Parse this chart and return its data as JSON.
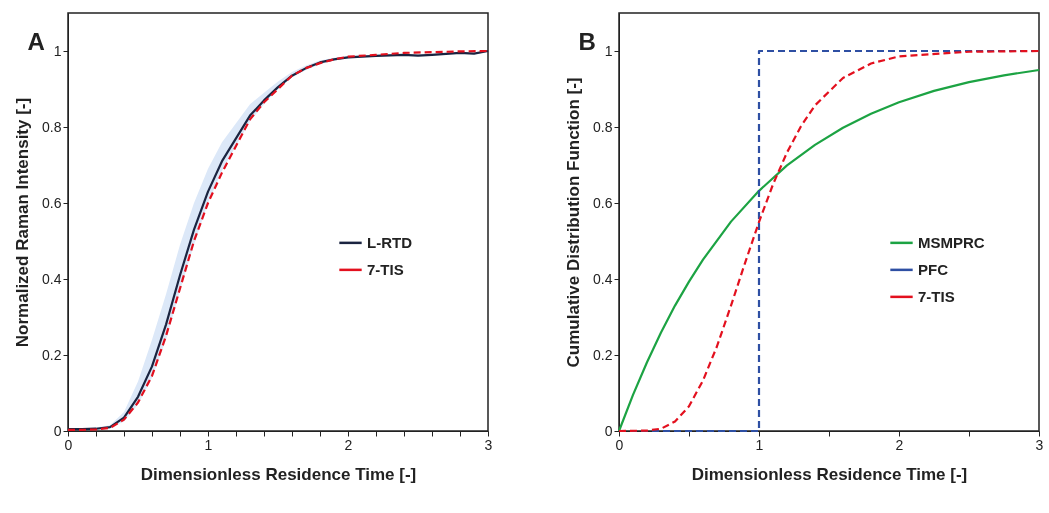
{
  "chart_data": [
    {
      "type": "line",
      "title": "A",
      "xlabel": "Dimensionless Residence Time [-]",
      "ylabel": "Normalized Raman Intensity [-]",
      "xlim": [
        0,
        3
      ],
      "ylim": [
        0,
        1.1
      ],
      "xticks": [
        0,
        {
          "value": 0.2,
          "label": null
        },
        {
          "value": 0.4,
          "label": null
        },
        {
          "value": 0.6,
          "label": null
        },
        {
          "value": 0.8,
          "label": null
        },
        1,
        {
          "value": 1.2,
          "label": null
        },
        {
          "value": 1.4,
          "label": null
        },
        {
          "value": 1.6,
          "label": null
        },
        {
          "value": 1.8,
          "label": null
        },
        2,
        {
          "value": 2.2,
          "label": null
        },
        {
          "value": 2.4,
          "label": null
        },
        {
          "value": 2.6,
          "label": null
        },
        {
          "value": 2.8,
          "label": null
        },
        3
      ],
      "yticks": [
        0,
        0.2,
        0.4,
        0.6,
        0.8,
        1
      ],
      "grid": false,
      "legend": "right",
      "series": [
        {
          "name": "L-RTD",
          "color": "#1a2440",
          "line_style": "solid",
          "x": [
            0,
            0.1,
            0.2,
            0.3,
            0.4,
            0.5,
            0.6,
            0.7,
            0.8,
            0.9,
            1.0,
            1.1,
            1.2,
            1.3,
            1.4,
            1.5,
            1.6,
            1.7,
            1.8,
            1.9,
            2.0,
            2.2,
            2.4,
            2.5,
            2.6,
            2.8,
            2.9,
            3.0
          ],
          "values": [
            0.005,
            0.005,
            0.006,
            0.01,
            0.035,
            0.09,
            0.17,
            0.28,
            0.41,
            0.53,
            0.63,
            0.71,
            0.77,
            0.83,
            0.87,
            0.905,
            0.935,
            0.955,
            0.97,
            0.978,
            0.983,
            0.987,
            0.99,
            0.988,
            0.99,
            0.995,
            0.993,
            1.0
          ],
          "lower": [
            0.003,
            0.003,
            0.004,
            0.007,
            0.025,
            0.07,
            0.14,
            0.24,
            0.37,
            0.49,
            0.6,
            0.685,
            0.75,
            0.815,
            0.86,
            0.9,
            0.93,
            0.95,
            0.965,
            0.975,
            0.98,
            0.985,
            0.988,
            0.986,
            0.988,
            0.993,
            0.991,
            0.998
          ],
          "upper": [
            0.007,
            0.007,
            0.009,
            0.015,
            0.05,
            0.13,
            0.24,
            0.36,
            0.49,
            0.6,
            0.69,
            0.76,
            0.81,
            0.86,
            0.89,
            0.92,
            0.945,
            0.962,
            0.975,
            0.982,
            0.987,
            0.99,
            0.993,
            0.991,
            0.993,
            0.997,
            0.996,
            1.0
          ]
        },
        {
          "name": "7-TIS",
          "color": "#e3101e",
          "line_style": "dashed",
          "x": [
            0,
            0.1,
            0.2,
            0.3,
            0.4,
            0.5,
            0.6,
            0.7,
            0.8,
            0.9,
            1.0,
            1.1,
            1.2,
            1.3,
            1.4,
            1.5,
            1.6,
            1.7,
            1.8,
            1.9,
            2.0,
            2.2,
            2.4,
            2.6,
            2.8,
            3.0
          ],
          "values": [
            0.003,
            0.003,
            0.004,
            0.008,
            0.03,
            0.075,
            0.145,
            0.25,
            0.375,
            0.5,
            0.6,
            0.68,
            0.75,
            0.82,
            0.865,
            0.9,
            0.935,
            0.955,
            0.968,
            0.978,
            0.985,
            0.99,
            0.995,
            0.997,
            0.999,
            1.0
          ]
        }
      ]
    },
    {
      "type": "line",
      "title": "B",
      "xlabel": "Dimensionless Residence Time [-]",
      "ylabel": "Cumulative Distribution Function [-]",
      "xlim": [
        0,
        3
      ],
      "ylim": [
        0,
        1.1
      ],
      "xticks": [
        0,
        {
          "value": 0.5,
          "label": null
        },
        1,
        {
          "value": 1.5,
          "label": null
        },
        2,
        {
          "value": 2.5,
          "label": null
        },
        3
      ],
      "yticks": [
        0,
        0.2,
        0.4,
        0.6,
        0.8,
        1
      ],
      "grid": false,
      "legend": "right",
      "series": [
        {
          "name": "MSMPRC",
          "color": "#1ca343",
          "line_style": "solid",
          "x": [
            0,
            0.1,
            0.2,
            0.3,
            0.4,
            0.5,
            0.6,
            0.8,
            1.0,
            1.2,
            1.4,
            1.6,
            1.8,
            2.0,
            2.25,
            2.5,
            2.75,
            3.0
          ],
          "values": [
            0,
            0.095,
            0.181,
            0.259,
            0.33,
            0.393,
            0.451,
            0.551,
            0.632,
            0.699,
            0.753,
            0.798,
            0.835,
            0.865,
            0.895,
            0.918,
            0.936,
            0.95
          ]
        },
        {
          "name": "PFC",
          "color": "#2e4fa3",
          "line_style": "dashed",
          "x": [
            0,
            1,
            1,
            3
          ],
          "values": [
            0,
            0,
            1,
            1
          ]
        },
        {
          "name": "7-TIS",
          "color": "#e3101e",
          "line_style": "dashed",
          "x": [
            0,
            0.2,
            0.3,
            0.4,
            0.5,
            0.6,
            0.7,
            0.8,
            0.9,
            1.0,
            1.1,
            1.2,
            1.3,
            1.4,
            1.6,
            1.8,
            2.0,
            2.5,
            3.0
          ],
          "values": [
            0,
            0.001,
            0.006,
            0.025,
            0.065,
            0.133,
            0.223,
            0.33,
            0.442,
            0.55,
            0.649,
            0.733,
            0.802,
            0.857,
            0.929,
            0.967,
            0.986,
            0.998,
            1.0
          ]
        }
      ]
    }
  ]
}
